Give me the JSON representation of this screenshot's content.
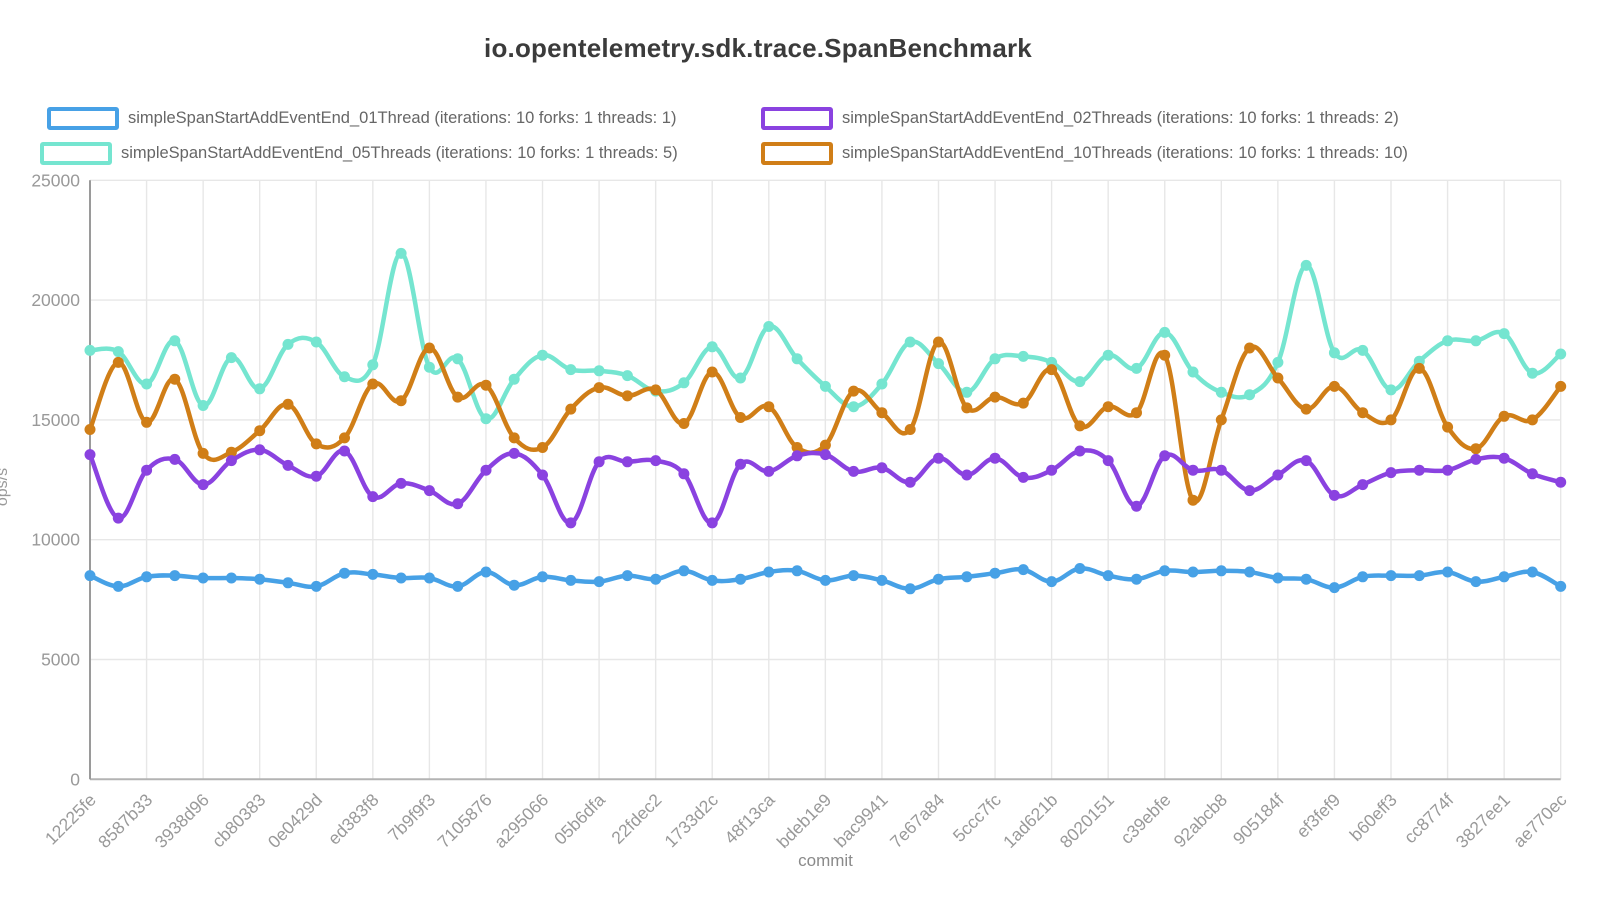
{
  "title": "io.opentelemetry.sdk.trace.SpanBenchmark",
  "legend": [
    {
      "label": "simpleSpanStartAddEventEnd_01Thread (iterations: 10 forks: 1 threads: 1)",
      "color": "#47A1E6"
    },
    {
      "label": "simpleSpanStartAddEventEnd_02Threads (iterations: 10 forks: 1 threads: 2)",
      "color": "#8A42E0"
    },
    {
      "label": "simpleSpanStartAddEventEnd_05Threads (iterations: 10 forks: 1 threads: 5)",
      "color": "#75E5D0"
    },
    {
      "label": "simpleSpanStartAddEventEnd_10Threads (iterations: 10 forks: 1 threads: 10)",
      "color": "#D07E17"
    }
  ],
  "colors": {
    "grid": "#E7E7E7",
    "y_axis_line": "#9A9A9A",
    "x_axis_line": "#B3B3B3",
    "tick_text": "#999999",
    "legend_text": "#666666",
    "title_text": "#3B3B3B"
  },
  "chart_data": {
    "type": "line",
    "title": "io.opentelemetry.sdk.trace.SpanBenchmark",
    "xlabel": "commit",
    "ylabel": "ops/s",
    "ylim": [
      0,
      25000
    ],
    "ytick_labels": [
      "0",
      "5000",
      "10000",
      "15000",
      "20000",
      "25000"
    ],
    "yticks": [
      0,
      5000,
      10000,
      15000,
      20000,
      25000
    ],
    "grid": true,
    "legend_position": "top",
    "points_per_label": 2,
    "categories": [
      "12225fe",
      "8587b33",
      "3938d96",
      "cb80383",
      "0e0429d",
      "ed383f8",
      "7b9f9f3",
      "7105876",
      "a295066",
      "05b6dfa",
      "22fdec2",
      "1733d2c",
      "48f13ca",
      "bdeb1e9",
      "bac9941",
      "7e67a84",
      "5ccc7fc",
      "1ad621b",
      "8020151",
      "c39ebfe",
      "92abcb8",
      "905184f",
      "ef3fef9",
      "b60eff3",
      "cc8774f",
      "3827ee1",
      "ae770ec"
    ],
    "series": [
      {
        "name": "simpleSpanStartAddEventEnd_01Thread (iterations: 10 forks: 1 threads: 1)",
        "color": "#47A1E6",
        "values": [
          8500,
          8050,
          8450,
          8500,
          8400,
          8400,
          8350,
          8200,
          8050,
          8600,
          8550,
          8400,
          8400,
          8050,
          8650,
          8100,
          8450,
          8300,
          8250,
          8500,
          8350,
          8700,
          8300,
          8350,
          8650,
          8700,
          8300,
          8500,
          8300,
          7950,
          8350,
          8450,
          8600,
          8750,
          8250,
          8800,
          8500,
          8350,
          8700,
          8650,
          8700,
          8650,
          8400,
          8350,
          8000,
          8450,
          8500,
          8500,
          8650,
          8250,
          8450,
          8650,
          8050
        ]
      },
      {
        "name": "simpleSpanStartAddEventEnd_02Threads (iterations: 10 forks: 1 threads: 2)",
        "color": "#8A42E0",
        "values": [
          13550,
          10900,
          12900,
          13350,
          12300,
          13300,
          13750,
          13100,
          12650,
          13700,
          11800,
          12350,
          12050,
          11500,
          12900,
          13600,
          12700,
          10700,
          13250,
          13250,
          13300,
          12750,
          10700,
          13150,
          12850,
          13500,
          13550,
          12850,
          13000,
          12400,
          13400,
          12700,
          13400,
          12600,
          12900,
          13700,
          13300,
          11400,
          13500,
          12900,
          12900,
          12050,
          12700,
          13300,
          11850,
          12300,
          12800,
          12900,
          12900,
          13350,
          13400,
          12750,
          12400
        ]
      },
      {
        "name": "simpleSpanStartAddEventEnd_05Threads (iterations: 10 forks: 1 threads: 5)",
        "color": "#75E5D0",
        "values": [
          17900,
          17850,
          16500,
          18300,
          15600,
          17600,
          16300,
          18150,
          18250,
          16800,
          17300,
          21950,
          17200,
          17550,
          15050,
          16700,
          17700,
          17100,
          17050,
          16850,
          16200,
          16550,
          18050,
          16750,
          18900,
          17550,
          16400,
          15550,
          16500,
          18250,
          17350,
          16150,
          17550,
          17650,
          17400,
          16600,
          17700,
          17150,
          18650,
          17000,
          16150,
          16050,
          17400,
          21450,
          17800,
          17900,
          16250,
          17450,
          18300,
          18300,
          18600,
          16950,
          17750
        ]
      },
      {
        "name": "simpleSpanStartAddEventEnd_10Threads (iterations: 10 forks: 1 threads: 10)",
        "color": "#D07E17",
        "values": [
          14600,
          17400,
          14900,
          16700,
          13600,
          13650,
          14550,
          15650,
          14000,
          14250,
          16500,
          15800,
          18000,
          15950,
          16450,
          14250,
          13850,
          15450,
          16350,
          16000,
          16250,
          14850,
          17000,
          15100,
          15550,
          13850,
          13950,
          16200,
          15300,
          14600,
          18250,
          15500,
          15950,
          15700,
          17100,
          14750,
          15550,
          15300,
          17700,
          11650,
          15000,
          18000,
          16750,
          15450,
          16400,
          15300,
          15000,
          17150,
          14700,
          13800,
          15150,
          15000,
          16400
        ]
      }
    ]
  }
}
